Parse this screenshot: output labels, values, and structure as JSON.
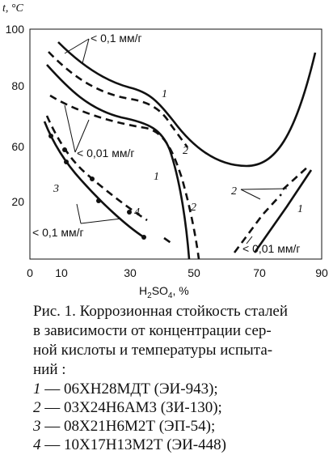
{
  "figure": {
    "y_axis_label": "t, °C",
    "x_axis_label": {
      "base1": "H",
      "sub1": "2",
      "base2": "SO",
      "sub2": "4",
      "unit": ", %"
    },
    "y_tick_labels": [
      "100",
      "80",
      "60",
      "20"
    ],
    "x_tick_labels": [
      "0",
      "10",
      "30",
      "50",
      "70",
      "90"
    ],
    "curve_labels": {
      "upper_1": "1",
      "upper_2": "2",
      "lower_1": "1",
      "lower_2": "2",
      "c3": "3",
      "c4": "4",
      "right_2": "2",
      "right_1": "1"
    },
    "annotations": [
      "< 0,1 мм/г",
      "< 0,01 мм/г",
      "< 0,1 мм/г",
      "< 0,01 мм/г"
    ]
  },
  "caption": {
    "lines": [
      "Рис. 1. Коррозионная стойкость сталей",
      "в зависимости от концентрации сер-",
      "ной кислоты и температуры испыта-",
      "ний :"
    ],
    "legend": [
      {
        "num": "1",
        "text": "— 06ХН28МДТ (ЭИ-943);"
      },
      {
        "num": "2",
        "text": "— 03Х24Н6АМ3 (ЗИ-130);"
      },
      {
        "num": "3",
        "text": "— 08Х21Н6М2Т (ЭП-54);"
      },
      {
        "num": "4",
        "text": "— 10Х17Н13М2Т (ЭИ-448)"
      }
    ]
  }
}
